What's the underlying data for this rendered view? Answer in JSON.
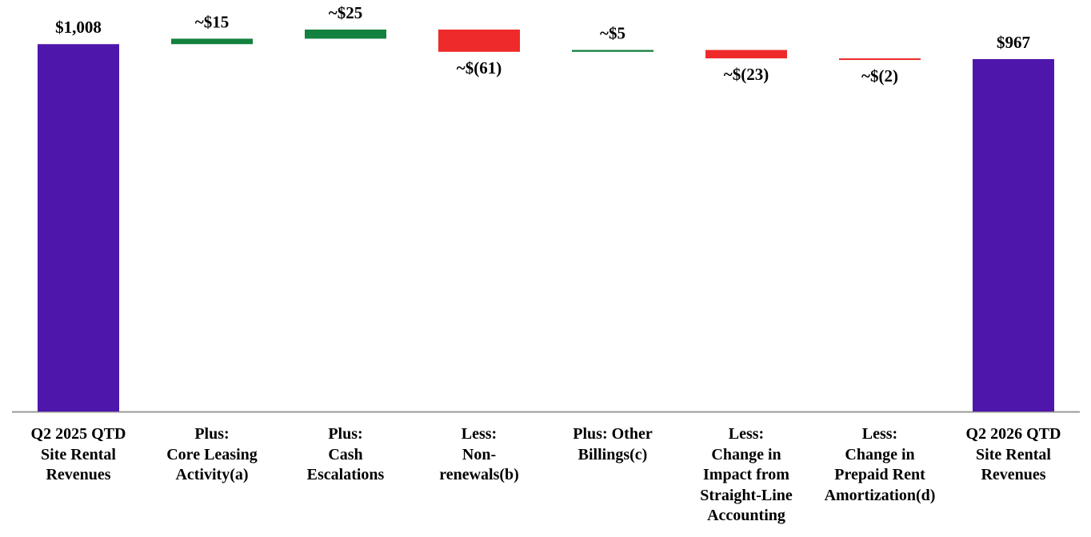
{
  "chart_data": {
    "type": "waterfall",
    "categories": [
      "Q2 2025 QTD\nSite Rental\nRevenues",
      "Plus:\nCore Leasing\nActivity(a)",
      "Plus:\nCash\nEscalations",
      "Less:\nNon-\nrenewals(b)",
      "Plus: Other\nBillings(c)",
      "Less:\nChange in\nImpact from\nStraight-Line\nAccounting",
      "Less:\nChange in\nPrepaid Rent\nAmortization(d)",
      "Q2 2026 QTD\nSite Rental\nRevenues"
    ],
    "values": [
      1008,
      15,
      25,
      -61,
      5,
      -23,
      -2,
      967
    ],
    "value_labels": [
      "$1,008",
      "~$15",
      "~$25",
      "~$(61)",
      "~$5",
      "~$(23)",
      "~$(2)",
      "$967"
    ],
    "colors": {
      "total": "#4f16ab",
      "increase": "#13813f",
      "decrease": "#ee2a2a"
    }
  }
}
